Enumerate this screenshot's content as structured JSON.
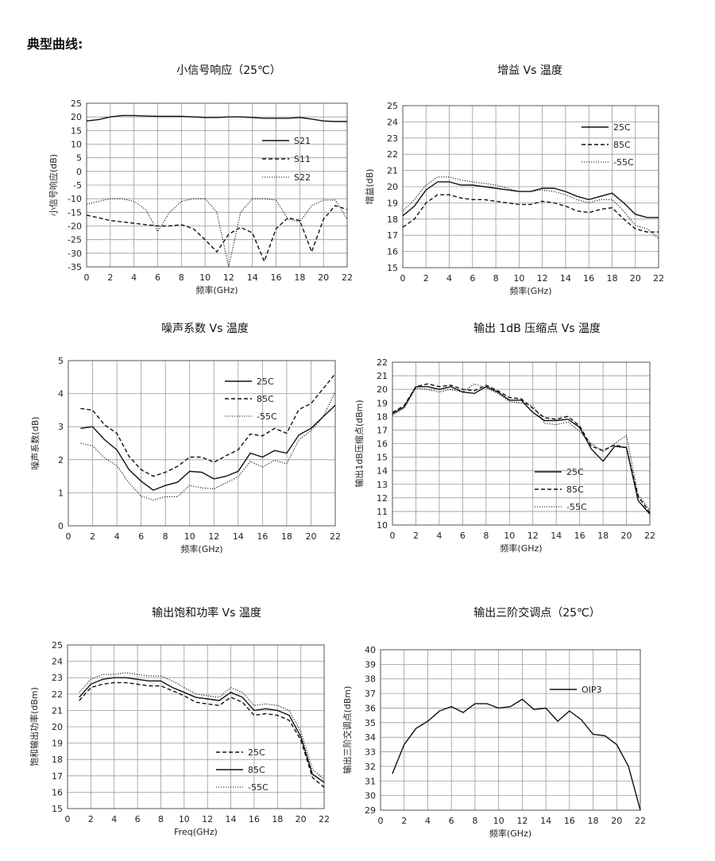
{
  "page": {
    "heading": "典型曲线:"
  },
  "charts": [
    {
      "title": "小信号响应（25℃）"
    },
    {
      "title": "增益 Vs 温度"
    },
    {
      "title": "噪声系数 Vs 温度"
    },
    {
      "title": "输出 1dB 压缩点 Vs 温度"
    },
    {
      "title": "输出饱和功率 Vs  温度"
    },
    {
      "title": "输出三阶交调点（25℃）"
    }
  ],
  "chart_data": [
    {
      "type": "line",
      "title": "小信号响应（25℃）",
      "xlabel": "频率(GHz)",
      "ylabel": "小信号响应(dB)",
      "xlim": [
        0,
        22
      ],
      "xticks": [
        0,
        2,
        4,
        6,
        8,
        10,
        12,
        14,
        16,
        18,
        20,
        22
      ],
      "ylim": [
        -35,
        25
      ],
      "yticks": [
        25,
        20,
        15,
        10,
        5,
        0,
        -5,
        -10,
        -15,
        -20,
        -25,
        -30,
        -35
      ],
      "grid": true,
      "legend_position": "top-right",
      "series": [
        {
          "name": "S21",
          "style": "solid",
          "x": [
            0,
            1,
            2,
            3,
            4,
            5,
            6,
            7,
            8,
            9,
            10,
            11,
            12,
            13,
            14,
            15,
            16,
            17,
            18,
            19,
            20,
            21,
            22
          ],
          "y": [
            18.5,
            19,
            20,
            20.5,
            20.5,
            20.3,
            20.2,
            20.2,
            20.2,
            20,
            19.8,
            19.8,
            20,
            20,
            19.8,
            19.5,
            19.5,
            19.5,
            19.8,
            19.2,
            18.5,
            18.3,
            18.3
          ]
        },
        {
          "name": "S11",
          "style": "dashed",
          "x": [
            0,
            1,
            2,
            3,
            4,
            5,
            6,
            7,
            8,
            9,
            10,
            11,
            12,
            13,
            14,
            15,
            16,
            17,
            18,
            19,
            20,
            21,
            22
          ],
          "y": [
            -16,
            -17,
            -18,
            -18.5,
            -19,
            -19.5,
            -20,
            -20,
            -19.5,
            -21,
            -25,
            -29.5,
            -23,
            -20.5,
            -22.5,
            -33,
            -21,
            -17,
            -18,
            -29.5,
            -17.5,
            -12.5,
            -14
          ]
        },
        {
          "name": "S22",
          "style": "dotted",
          "x": [
            0,
            1,
            2,
            3,
            4,
            5,
            6,
            7,
            8,
            9,
            10,
            11,
            12,
            13,
            14,
            15,
            16,
            17,
            18,
            19,
            20,
            21,
            22
          ],
          "y": [
            -12,
            -11,
            -10,
            -10,
            -11,
            -14,
            -22,
            -15,
            -11,
            -10,
            -10,
            -15,
            -35,
            -15,
            -10,
            -10,
            -10.5,
            -17.5,
            -18.5,
            -12.5,
            -10.5,
            -10.5,
            -17.5
          ]
        }
      ]
    },
    {
      "type": "line",
      "title": "增益 Vs 温度",
      "xlabel": "频率(GHz)",
      "ylabel": "增益(dB)",
      "xlim": [
        0,
        22
      ],
      "xticks": [
        0,
        2,
        4,
        6,
        8,
        10,
        12,
        14,
        16,
        18,
        20,
        22
      ],
      "ylim": [
        15,
        25
      ],
      "yticks": [
        25,
        24,
        23,
        22,
        21,
        20,
        19,
        18,
        17,
        16,
        15
      ],
      "grid": true,
      "legend_position": "top-right",
      "series": [
        {
          "name": "25C",
          "style": "solid",
          "x": [
            0,
            1,
            2,
            3,
            4,
            5,
            6,
            7,
            8,
            9,
            10,
            11,
            12,
            13,
            14,
            15,
            16,
            17,
            18,
            19,
            20,
            21,
            22
          ],
          "y": [
            18.2,
            18.8,
            19.8,
            20.3,
            20.3,
            20.1,
            20.1,
            20,
            19.9,
            19.8,
            19.7,
            19.7,
            19.9,
            19.9,
            19.7,
            19.4,
            19.2,
            19.4,
            19.6,
            19,
            18.3,
            18.1,
            18.1
          ]
        },
        {
          "name": "85C",
          "style": "dashed",
          "x": [
            0,
            1,
            2,
            3,
            4,
            5,
            6,
            7,
            8,
            9,
            10,
            11,
            12,
            13,
            14,
            15,
            16,
            17,
            18,
            19,
            20,
            21,
            22
          ],
          "y": [
            17.5,
            18,
            19,
            19.5,
            19.5,
            19.3,
            19.2,
            19.2,
            19.1,
            19,
            18.9,
            18.9,
            19.1,
            19,
            18.8,
            18.5,
            18.4,
            18.6,
            18.7,
            18,
            17.4,
            17.2,
            17.2
          ]
        },
        {
          "name": "-55C",
          "style": "dotted",
          "x": [
            0,
            1,
            2,
            3,
            4,
            5,
            6,
            7,
            8,
            9,
            10,
            11,
            12,
            13,
            14,
            15,
            16,
            17,
            18,
            19,
            20,
            21,
            22
          ],
          "y": [
            18.5,
            19.2,
            20.1,
            20.6,
            20.6,
            20.4,
            20.3,
            20.2,
            20.1,
            19.9,
            19.7,
            19.7,
            19.8,
            19.7,
            19.5,
            19.2,
            19,
            19.2,
            19.2,
            18.5,
            17.6,
            17.4,
            16.8
          ]
        }
      ]
    },
    {
      "type": "line",
      "title": "噪声系数 Vs 温度",
      "xlabel": "频率(GHz)",
      "ylabel": "噪声系数(dB)",
      "xlim": [
        0,
        22
      ],
      "xticks": [
        0,
        2,
        4,
        6,
        8,
        10,
        12,
        14,
        16,
        18,
        20,
        22
      ],
      "ylim": [
        0,
        5
      ],
      "yticks": [
        5,
        4,
        3,
        2,
        1,
        0
      ],
      "grid": true,
      "legend_position": "top-right",
      "series": [
        {
          "name": "25C",
          "style": "solid",
          "x": [
            1,
            2,
            3,
            4,
            5,
            6,
            7,
            8,
            9,
            10,
            11,
            12,
            13,
            14,
            15,
            16,
            17,
            18,
            19,
            20,
            21,
            22
          ],
          "y": [
            2.95,
            3,
            2.6,
            2.3,
            1.7,
            1.35,
            1.08,
            1.22,
            1.32,
            1.65,
            1.62,
            1.42,
            1.5,
            1.65,
            2.2,
            2.08,
            2.28,
            2.2,
            2.75,
            2.95,
            3.3,
            3.65
          ]
        },
        {
          "name": "85C",
          "style": "dashed",
          "x": [
            1,
            2,
            3,
            4,
            5,
            6,
            7,
            8,
            9,
            10,
            11,
            12,
            13,
            14,
            15,
            16,
            17,
            18,
            19,
            20,
            21,
            22
          ],
          "y": [
            3.55,
            3.5,
            3.05,
            2.8,
            2.1,
            1.7,
            1.5,
            1.62,
            1.8,
            2.08,
            2.08,
            1.92,
            2.12,
            2.3,
            2.78,
            2.72,
            2.95,
            2.8,
            3.52,
            3.7,
            4.15,
            4.6
          ]
        },
        {
          "name": "-55C",
          "style": "dotted",
          "x": [
            1,
            2,
            3,
            4,
            5,
            6,
            7,
            8,
            9,
            10,
            11,
            12,
            13,
            14,
            15,
            16,
            17,
            18,
            19,
            20,
            21,
            22
          ],
          "y": [
            2.5,
            2.42,
            2.05,
            1.82,
            1.3,
            0.9,
            0.78,
            0.88,
            0.88,
            1.22,
            1.15,
            1.12,
            1.3,
            1.48,
            1.95,
            1.78,
            1.98,
            1.88,
            2.6,
            2.88,
            3.3,
            4.05
          ]
        }
      ]
    },
    {
      "type": "line",
      "title": "输出 1dB 压缩点 Vs 温度",
      "xlabel": "频率(GHz)",
      "ylabel": "输出1dB压缩点(dBm)",
      "xlim": [
        0,
        22
      ],
      "xticks": [
        0,
        2,
        4,
        6,
        8,
        10,
        12,
        14,
        16,
        18,
        20,
        22
      ],
      "ylim": [
        10,
        22
      ],
      "yticks": [
        22,
        21,
        20,
        19,
        18,
        17,
        16,
        15,
        14,
        13,
        12,
        11,
        10
      ],
      "grid": true,
      "legend_position": "bottom-left",
      "series": [
        {
          "name": "25C",
          "style": "solid",
          "x": [
            0,
            1,
            2,
            3,
            4,
            5,
            6,
            7,
            8,
            9,
            10,
            11,
            12,
            13,
            14,
            15,
            16,
            17,
            18,
            19,
            20,
            21,
            22
          ],
          "y": [
            18.2,
            18.7,
            20.2,
            20.2,
            20,
            20.2,
            19.8,
            19.7,
            20.2,
            19.8,
            19.2,
            19.2,
            18.3,
            17.7,
            17.7,
            17.8,
            17.2,
            15.6,
            14.7,
            15.8,
            15.7,
            11.8,
            10.8
          ]
        },
        {
          "name": "85C",
          "style": "dashed",
          "x": [
            0,
            1,
            2,
            3,
            4,
            5,
            6,
            7,
            8,
            9,
            10,
            11,
            12,
            13,
            14,
            15,
            16,
            17,
            18,
            19,
            20,
            21,
            22
          ],
          "y": [
            18.3,
            18.8,
            20.2,
            20.4,
            20.2,
            20.3,
            20,
            19.9,
            20.3,
            19.9,
            19.4,
            19.3,
            18.6,
            17.9,
            17.8,
            18,
            17.3,
            15.8,
            15.5,
            15.9,
            15.7,
            12.1,
            10.9
          ]
        },
        {
          "name": "-55C",
          "style": "dotted",
          "x": [
            0,
            1,
            2,
            3,
            4,
            5,
            6,
            7,
            8,
            9,
            10,
            11,
            12,
            13,
            14,
            15,
            16,
            17,
            18,
            19,
            20,
            21,
            22
          ],
          "y": [
            18.1,
            18.6,
            20.1,
            20,
            19.8,
            20,
            19.8,
            20.4,
            20.1,
            19.7,
            19.1,
            19,
            18.8,
            17.5,
            17.4,
            17.6,
            16.9,
            16,
            15.4,
            16,
            16.6,
            12.2,
            11.1
          ]
        }
      ]
    },
    {
      "type": "line",
      "title": "输出饱和功率 Vs  温度",
      "xlabel": "Freq(GHz)",
      "ylabel": "饱和输出功率(dBm)",
      "xlim": [
        0,
        22
      ],
      "xticks": [
        0,
        2,
        4,
        6,
        8,
        10,
        12,
        14,
        16,
        18,
        20,
        22
      ],
      "ylim": [
        15,
        25
      ],
      "yticks": [
        25,
        24,
        23,
        22,
        21,
        20,
        19,
        18,
        17,
        16,
        15
      ],
      "grid": true,
      "legend_position": "bottom-right",
      "series": [
        {
          "name": "25C",
          "style": "dashed",
          "x": [
            1,
            2,
            3,
            4,
            5,
            6,
            7,
            8,
            9,
            10,
            11,
            12,
            13,
            14,
            15,
            16,
            17,
            18,
            19,
            20,
            21,
            22
          ],
          "y": [
            21.6,
            22.4,
            22.6,
            22.7,
            22.7,
            22.6,
            22.5,
            22.5,
            22.2,
            21.9,
            21.5,
            21.4,
            21.3,
            21.8,
            21.5,
            20.7,
            20.8,
            20.7,
            20.4,
            19.2,
            16.9,
            16.3
          ]
        },
        {
          "name": "85C",
          "style": "solid",
          "x": [
            1,
            2,
            3,
            4,
            5,
            6,
            7,
            8,
            9,
            10,
            11,
            12,
            13,
            14,
            15,
            16,
            17,
            18,
            19,
            20,
            21,
            22
          ],
          "y": [
            21.8,
            22.6,
            22.9,
            23,
            23,
            22.9,
            22.8,
            22.8,
            22.4,
            22.1,
            21.8,
            21.7,
            21.6,
            22.1,
            21.8,
            21,
            21.1,
            21,
            20.7,
            19.4,
            17.1,
            16.6
          ]
        },
        {
          "name": "-55C",
          "style": "dotted",
          "x": [
            1,
            2,
            3,
            4,
            5,
            6,
            7,
            8,
            9,
            10,
            11,
            12,
            13,
            14,
            15,
            16,
            17,
            18,
            19,
            20,
            21,
            22
          ],
          "y": [
            22.1,
            22.9,
            23.2,
            23.2,
            23.3,
            23.2,
            23.1,
            23.1,
            22.8,
            22.4,
            22,
            21.9,
            21.8,
            22.4,
            22.1,
            21.3,
            21.4,
            21.3,
            21,
            19.7,
            17.4,
            16.8
          ]
        }
      ]
    },
    {
      "type": "line",
      "title": "输出三阶交调点（25℃）",
      "xlabel": "频率(GHz)",
      "ylabel": "输出三阶交调点(dBm)",
      "xlim": [
        0,
        22
      ],
      "xticks": [
        0,
        2,
        4,
        6,
        8,
        10,
        12,
        14,
        16,
        18,
        20,
        22
      ],
      "ylim": [
        29,
        40
      ],
      "yticks": [
        40,
        39,
        38,
        37,
        36,
        35,
        34,
        33,
        32,
        31,
        30,
        29
      ],
      "grid": true,
      "legend_position": "top-right",
      "series": [
        {
          "name": "OIP3",
          "style": "solid",
          "x": [
            1,
            2,
            3,
            4,
            5,
            6,
            7,
            8,
            9,
            10,
            11,
            12,
            13,
            14,
            15,
            16,
            17,
            18,
            19,
            20,
            21,
            22
          ],
          "y": [
            31.5,
            33.5,
            34.6,
            35.1,
            35.8,
            36.1,
            35.7,
            36.3,
            36.3,
            36,
            36.1,
            36.6,
            35.9,
            36,
            35.1,
            35.8,
            35.2,
            34.2,
            34.1,
            33.5,
            32,
            29
          ]
        }
      ]
    }
  ]
}
